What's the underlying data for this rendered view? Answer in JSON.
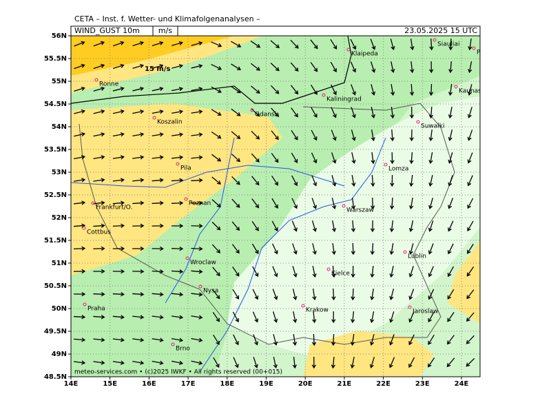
{
  "header": {
    "institute": "CETA – Inst. f. Wetter- und Klimafolgenanalysen –",
    "field": "WIND_GUST 10m",
    "unit": "m/s",
    "valid": "23.05.2025 15 UTC"
  },
  "map": {
    "lat_ticks": [
      {
        "value": 56,
        "label": "56N"
      },
      {
        "value": 55.5,
        "label": "55.5N"
      },
      {
        "value": 55,
        "label": "55N"
      },
      {
        "value": 54.5,
        "label": "54.5N"
      },
      {
        "value": 54,
        "label": "54N"
      },
      {
        "value": 53.5,
        "label": "53.5N"
      },
      {
        "value": 53,
        "label": "53N"
      },
      {
        "value": 52.5,
        "label": "52.5N"
      },
      {
        "value": 52,
        "label": "52N"
      },
      {
        "value": 51.5,
        "label": "51.5N"
      },
      {
        "value": 51,
        "label": "51N"
      },
      {
        "value": 50.5,
        "label": "50.5N"
      },
      {
        "value": 50,
        "label": "50N"
      },
      {
        "value": 49.5,
        "label": "49.5N"
      },
      {
        "value": 49,
        "label": "49N"
      },
      {
        "value": 48.5,
        "label": "48.5N"
      }
    ],
    "lon_ticks": [
      {
        "value": 14,
        "label": "14E"
      },
      {
        "value": 15,
        "label": "15E"
      },
      {
        "value": 16,
        "label": "16E"
      },
      {
        "value": 17,
        "label": "17E"
      },
      {
        "value": 18,
        "label": "18E"
      },
      {
        "value": 19,
        "label": "19E"
      },
      {
        "value": 20,
        "label": "20E"
      },
      {
        "value": 21,
        "label": "21E"
      },
      {
        "value": 22,
        "label": "22E"
      },
      {
        "value": 23,
        "label": "23E"
      },
      {
        "value": 24,
        "label": "24E"
      }
    ],
    "contour_label": "15 m/s",
    "cities": [
      "Siauliai",
      "Panevezys",
      "Klaipeda",
      "Ronne",
      "Kaunas",
      "Kaliningrad",
      "Gdansk",
      "Koszalin",
      "Suwalki",
      "Lomza",
      "Pila",
      "Frankfurt/O.",
      "Poznan",
      "Warszaw",
      "Cottbus",
      "Lublin",
      "Wroclaw",
      "Kielce",
      "Nysa",
      "Praha",
      "Krakow",
      "Jaroslaw",
      "Brno"
    ]
  },
  "footer": "meteo-services.com • (c)2025 IWKF • All rights reserved (00+015)"
}
